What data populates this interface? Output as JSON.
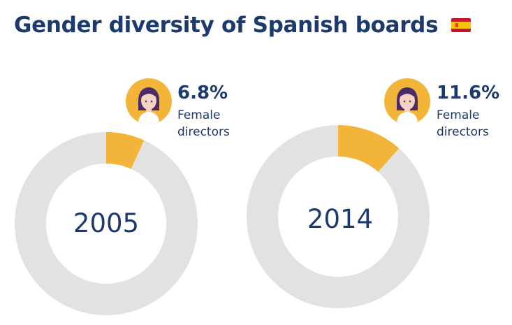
{
  "title": "Gender diversity of Spanish boards",
  "flag_icon": "spain-flag-icon",
  "colors": {
    "female": "#f2b53a",
    "rest": "#e2e2e2",
    "text": "#1c3a6e"
  },
  "chart_data": [
    {
      "type": "pie",
      "donut": true,
      "center_label": "2005",
      "slices": [
        {
          "label": "Female directors",
          "value": 6.8
        },
        {
          "label": "",
          "value": 93.2
        }
      ],
      "percent_label": "6.8%",
      "caption_line1": "Female",
      "caption_line2": "directors"
    },
    {
      "type": "pie",
      "donut": true,
      "center_label": "2014",
      "slices": [
        {
          "label": "Female directors",
          "value": 11.6
        },
        {
          "label": "",
          "value": 88.4
        }
      ],
      "percent_label": "11.6%",
      "caption_line1": "Female",
      "caption_line2": "directors"
    }
  ]
}
